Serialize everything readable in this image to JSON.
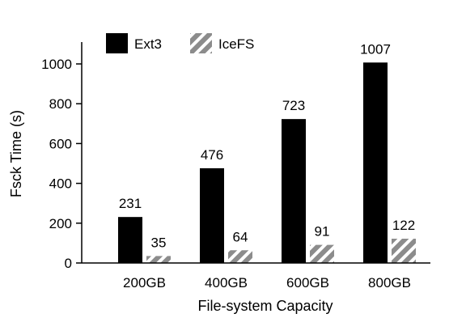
{
  "chart_data": {
    "type": "bar",
    "categories": [
      "200GB",
      "400GB",
      "600GB",
      "800GB"
    ],
    "series": [
      {
        "name": "Ext3",
        "values": [
          231,
          476,
          723,
          1007
        ],
        "color": "#000000",
        "pattern": "solid"
      },
      {
        "name": "IceFS",
        "values": [
          35,
          64,
          91,
          122
        ],
        "color": "#8c8c8c",
        "pattern": "hatched"
      }
    ],
    "title": "",
    "xlabel": "File-system Capacity",
    "ylabel": "Fsck Time (s)",
    "ylim": [
      0,
      1100
    ],
    "yticks": [
      0,
      200,
      400,
      600,
      800,
      1000
    ],
    "grid": false,
    "legend": "top-left"
  }
}
